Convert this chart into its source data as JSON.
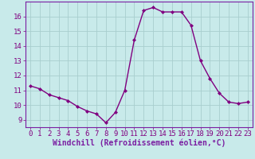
{
  "x": [
    0,
    1,
    2,
    3,
    4,
    5,
    6,
    7,
    8,
    9,
    10,
    11,
    12,
    13,
    14,
    15,
    16,
    17,
    18,
    19,
    20,
    21,
    22,
    23
  ],
  "y": [
    11.3,
    11.1,
    10.7,
    10.5,
    10.3,
    9.9,
    9.6,
    9.4,
    8.8,
    9.5,
    11.0,
    14.4,
    16.4,
    16.6,
    16.3,
    16.3,
    16.3,
    15.4,
    13.0,
    11.8,
    10.8,
    10.2,
    10.1,
    10.2
  ],
  "line_color": "#800080",
  "marker": "D",
  "marker_size": 2.0,
  "background_color": "#c8eaea",
  "grid_color": "#a8cece",
  "xlabel": "Windchill (Refroidissement éolien,°C)",
  "xlabel_fontsize": 7,
  "yticks": [
    9,
    10,
    11,
    12,
    13,
    14,
    15,
    16
  ],
  "xticks": [
    0,
    1,
    2,
    3,
    4,
    5,
    6,
    7,
    8,
    9,
    10,
    11,
    12,
    13,
    14,
    15,
    16,
    17,
    18,
    19,
    20,
    21,
    22,
    23
  ],
  "ylim": [
    8.5,
    17.0
  ],
  "xlim": [
    -0.5,
    23.5
  ],
  "tick_fontsize": 6.5,
  "line_width": 1.0,
  "line_color_hex": "#7b1fa2",
  "spine_color": "#7b1fa2",
  "xlabel_color": "#7b1fa2"
}
